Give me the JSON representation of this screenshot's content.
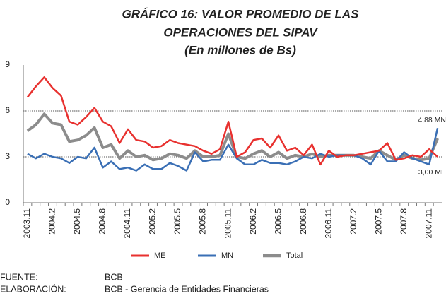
{
  "chart_data": {
    "type": "line",
    "title_lines": [
      "GRÁFICO 16: VALOR PROMEDIO DE LAS",
      "OPERACIONES DEL SIPAV"
    ],
    "subtitle": "(En millones de Bs)",
    "categories": [
      "2003.11",
      null,
      null,
      "2004.2",
      null,
      null,
      "2004.5",
      null,
      null,
      "2004.8",
      null,
      null,
      "2004.11",
      null,
      null,
      "2005.2",
      null,
      null,
      "2005.5",
      null,
      null,
      "2005.8",
      null,
      null,
      "2005.11",
      null,
      null,
      "2006.2",
      null,
      null,
      "2006.5",
      null,
      null,
      "2006.8",
      null,
      null,
      "2006.11",
      null,
      null,
      "2007.2",
      null,
      null,
      "2007.5",
      null,
      null,
      "2007.8",
      null,
      null,
      "2007.11",
      null
    ],
    "series": [
      {
        "name": "ME",
        "color": "#e8312f",
        "values": [
          6.9,
          7.6,
          8.2,
          7.5,
          7.0,
          5.3,
          5.1,
          5.6,
          6.2,
          5.3,
          5.0,
          3.9,
          4.8,
          4.1,
          4.0,
          3.6,
          3.7,
          4.1,
          3.9,
          3.8,
          3.7,
          3.4,
          3.2,
          3.5,
          5.3,
          3.0,
          3.3,
          4.1,
          4.2,
          3.6,
          4.4,
          3.4,
          3.6,
          3.1,
          3.8,
          2.5,
          3.4,
          3.0,
          3.1,
          3.1,
          3.2,
          3.3,
          3.4,
          3.9,
          2.8,
          2.9,
          3.1,
          3.0,
          3.5,
          3.0
        ]
      },
      {
        "name": "MN",
        "color": "#3a6fb5",
        "values": [
          3.2,
          2.9,
          3.2,
          3.0,
          2.9,
          2.6,
          3.0,
          2.9,
          3.6,
          2.3,
          2.7,
          2.2,
          2.3,
          2.1,
          2.5,
          2.2,
          2.2,
          2.6,
          2.4,
          2.1,
          3.3,
          2.7,
          2.8,
          2.8,
          3.8,
          2.9,
          2.5,
          2.5,
          2.8,
          2.6,
          2.6,
          2.5,
          2.7,
          3.0,
          2.9,
          3.2,
          3.0,
          3.1,
          3.1,
          3.1,
          2.9,
          2.5,
          3.4,
          2.7,
          2.7,
          3.3,
          2.9,
          2.7,
          2.5,
          4.88
        ]
      },
      {
        "name": "Total",
        "color": "#8c8c8c",
        "values": [
          4.7,
          5.1,
          5.8,
          5.2,
          5.1,
          4.0,
          4.1,
          4.4,
          4.9,
          3.6,
          3.8,
          2.9,
          3.4,
          3.0,
          3.1,
          2.8,
          2.9,
          3.2,
          3.1,
          2.9,
          3.4,
          3.0,
          3.0,
          3.1,
          4.5,
          3.0,
          2.9,
          3.2,
          3.4,
          3.0,
          3.3,
          2.9,
          3.1,
          3.0,
          3.2,
          3.0,
          3.1,
          3.1,
          3.1,
          3.1,
          3.0,
          2.9,
          3.4,
          3.1,
          2.8,
          3.1,
          2.9,
          2.8,
          2.9,
          4.2
        ]
      }
    ],
    "annotations": [
      "4,88 MN",
      "3,00 ME"
    ],
    "ylim": [
      0,
      9
    ],
    "yticks": [
      0,
      3,
      6,
      9
    ],
    "grid": true
  },
  "notes": [
    {
      "label": "FUENTE:",
      "text": "BCB"
    },
    {
      "label": "ELABORACIÓN:",
      "text": "BCB - Gerencia de Entidades Financieras"
    }
  ]
}
